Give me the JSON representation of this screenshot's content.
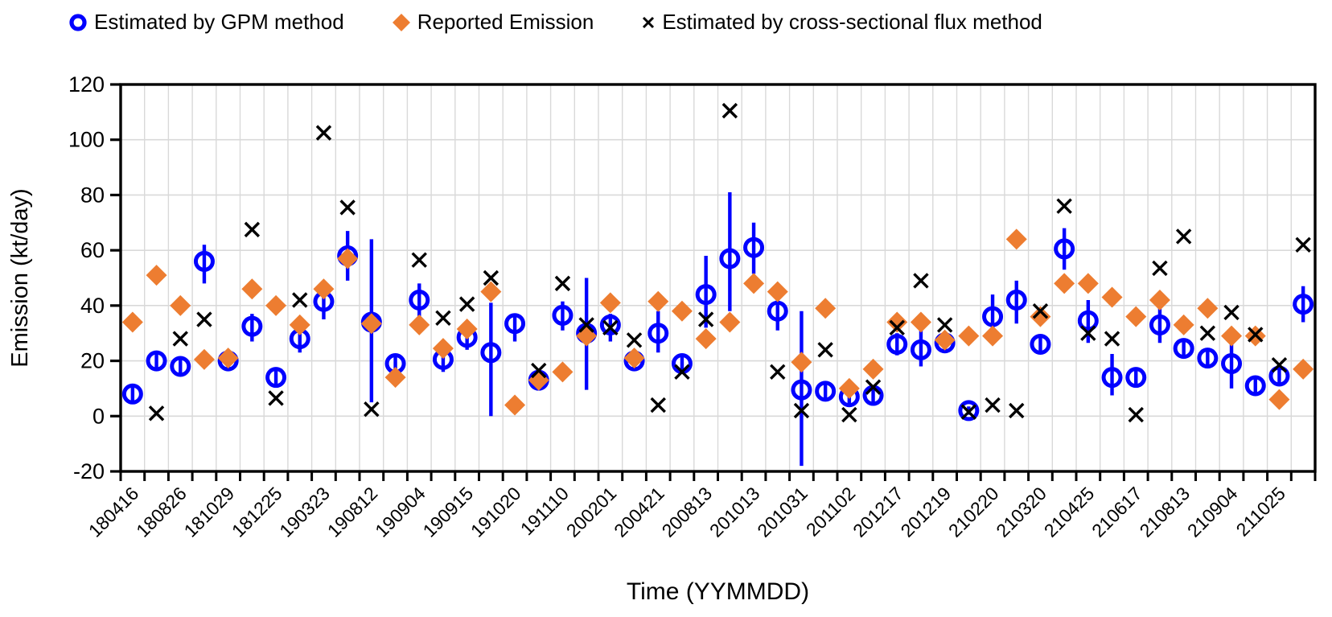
{
  "chart_data": {
    "type": "scatter",
    "xlabel": "Time (YYMMDD)",
    "ylabel": "Emission (kt/day)",
    "ylim": [
      -20,
      120
    ],
    "ytick_step": 20,
    "y_ticks": [
      "-20",
      "0",
      "20",
      "40",
      "60",
      "80",
      "100",
      "120"
    ],
    "grid": "both",
    "legend_position": "top",
    "axis_color": "#000000",
    "gridline_color": "#d9d9d9",
    "categories": [
      "180416",
      "",
      "180826",
      "",
      "181029",
      "",
      "181225",
      "",
      "190323",
      "",
      "190812",
      "",
      "190904",
      "",
      "190915",
      "",
      "191020",
      "",
      "191110",
      "",
      "200201",
      "",
      "200421",
      "",
      "200813",
      "",
      "201013",
      "",
      "201031",
      "",
      "201102",
      "",
      "201217",
      "",
      "201219",
      "",
      "210220",
      "",
      "210320",
      "",
      "210425",
      "",
      "210617",
      "",
      "210813",
      "",
      "210904",
      "",
      "211025",
      ""
    ],
    "series": [
      {
        "name": "Estimated by GPM method",
        "marker": "open-circle-with-error-bars",
        "color": "#0000FF",
        "values": [
          8,
          20,
          18,
          56,
          20,
          32.5,
          14,
          28,
          41.5,
          58,
          34,
          19,
          42,
          20.5,
          28.5,
          23,
          33.5,
          13,
          36.5,
          30,
          33,
          20,
          30,
          19,
          44,
          57,
          61,
          38,
          9.5,
          9,
          7,
          7.5,
          26,
          24,
          26.5,
          2,
          36,
          42,
          26,
          60.5,
          34.5,
          14,
          14,
          33,
          24.5,
          21,
          19,
          11,
          14.5,
          40.5
        ],
        "err_lo": [
          5.5,
          17,
          15,
          48,
          17,
          27,
          11,
          23,
          35,
          49,
          5,
          16,
          35.5,
          16,
          24,
          0,
          27,
          10,
          31,
          9.5,
          27,
          17,
          23,
          16,
          32,
          38,
          51.5,
          31,
          -18,
          6,
          4,
          4.5,
          22,
          18,
          23,
          0.5,
          31.5,
          33.5,
          22.5,
          53,
          26.5,
          7.5,
          11,
          26.5,
          21,
          18,
          10,
          8,
          11,
          34
        ],
        "err_hi": [
          10.5,
          23,
          21,
          62,
          23,
          37,
          17.5,
          32,
          48,
          67,
          64,
          22,
          48,
          23.5,
          32,
          41,
          37,
          16,
          41.5,
          50,
          37,
          23,
          38,
          22,
          58,
          81,
          70,
          43.5,
          38,
          12,
          10,
          10.5,
          30,
          31,
          30,
          3.5,
          44,
          49,
          29.5,
          68,
          42,
          22.5,
          17,
          39,
          28,
          24,
          27,
          14,
          18,
          47
        ]
      },
      {
        "name": "Reported Emission",
        "marker": "diamond",
        "color": "#ED7D31",
        "values": [
          34,
          51,
          40,
          20.5,
          21,
          46,
          40,
          33,
          46,
          57,
          33.5,
          14,
          33,
          24.5,
          31.5,
          45,
          4,
          13,
          16,
          29,
          41,
          21,
          41.5,
          38,
          28,
          34,
          48,
          45,
          19.5,
          39,
          10,
          17,
          34,
          34,
          27.5,
          29,
          29,
          64,
          36,
          48,
          48,
          43,
          36,
          42,
          33,
          39,
          29,
          29,
          6,
          17
        ]
      },
      {
        "name": "Estimated by cross-sectional flux method",
        "marker": "x-cross",
        "color": "#000000",
        "values": [
          null,
          1,
          28,
          35,
          null,
          67.5,
          6.5,
          42,
          102.5,
          75.5,
          2.5,
          null,
          56.5,
          35.5,
          40.5,
          50,
          null,
          16.5,
          48,
          33,
          32,
          27.5,
          4,
          16,
          35,
          110.5,
          null,
          16,
          2,
          24,
          0.5,
          10.5,
          32,
          49,
          33,
          1.5,
          4,
          2,
          38,
          76,
          30,
          28,
          0.5,
          53.5,
          65,
          30,
          37.5,
          29.5,
          18.5,
          62
        ]
      }
    ]
  }
}
